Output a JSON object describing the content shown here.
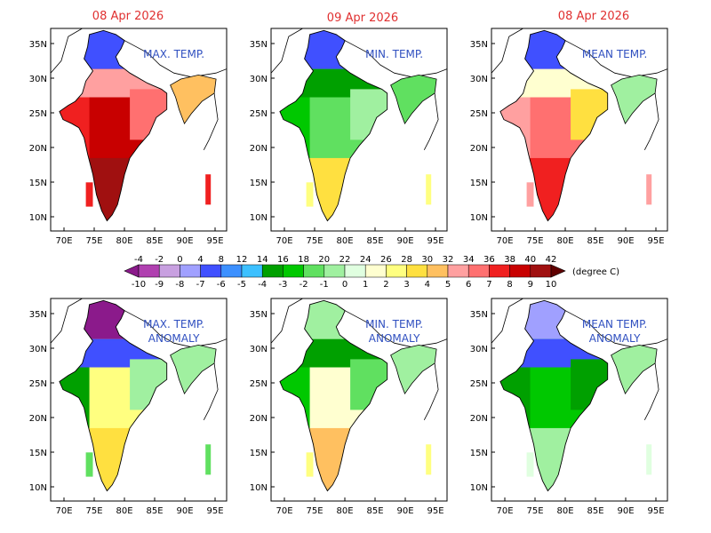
{
  "dates": {
    "top_left": "08 Apr 2026",
    "top_mid": "09 Apr 2026",
    "top_right": "08 Apr 2026"
  },
  "panels": [
    {
      "id": "max",
      "title_lines": [
        "MAX. TEMP."
      ],
      "scheme": "max"
    },
    {
      "id": "min",
      "title_lines": [
        "MIN. TEMP."
      ],
      "scheme": "min"
    },
    {
      "id": "mean",
      "title_lines": [
        "MEAN TEMP."
      ],
      "scheme": "mean"
    },
    {
      "id": "max-anom",
      "title_lines": [
        "MAX. TEMP.",
        "ANOMALY"
      ],
      "scheme": "maxa"
    },
    {
      "id": "min-anom",
      "title_lines": [
        "MIN. TEMP.",
        "ANOMALY"
      ],
      "scheme": "mina"
    },
    {
      "id": "mean-anom",
      "title_lines": [
        "MEAN TEMP.",
        "ANOMALY"
      ],
      "scheme": "meana"
    }
  ],
  "axes": {
    "x_ticks": [
      "70E",
      "75E",
      "80E",
      "85E",
      "90E",
      "95E"
    ],
    "y_ticks": [
      "35N",
      "30N",
      "25N",
      "20N",
      "15N",
      "10N"
    ]
  },
  "colorbar": {
    "top_labels": [
      "-4",
      "-2",
      "0",
      "4",
      "8",
      "12",
      "14",
      "16",
      "18",
      "20",
      "22",
      "24",
      "26",
      "28",
      "30",
      "32",
      "34",
      "36",
      "38",
      "40",
      "42"
    ],
    "bottom_labels": [
      "-10",
      "-9",
      "-8",
      "-7",
      "-6",
      "-5",
      "-4",
      "-3",
      "-2",
      "-1",
      "0",
      "1",
      "2",
      "3",
      "4",
      "5",
      "6",
      "7",
      "8",
      "9",
      "10"
    ],
    "unit": "(degree C)",
    "colors": [
      "#8b1a8b",
      "#b040b0",
      "#c8a0e0",
      "#a0a0ff",
      "#4050ff",
      "#3c90ff",
      "#3cc0ff",
      "#00a000",
      "#00c800",
      "#60e060",
      "#a0f0a0",
      "#e0ffe0",
      "#ffffd0",
      "#ffff80",
      "#ffe040",
      "#ffc060",
      "#ffa0a0",
      "#ff7070",
      "#f02020",
      "#c80000",
      "#a01010",
      "#600000"
    ]
  },
  "colors": {
    "date_text": "#e03030",
    "title_text": "#3050c0",
    "axis_text": "#000000"
  }
}
